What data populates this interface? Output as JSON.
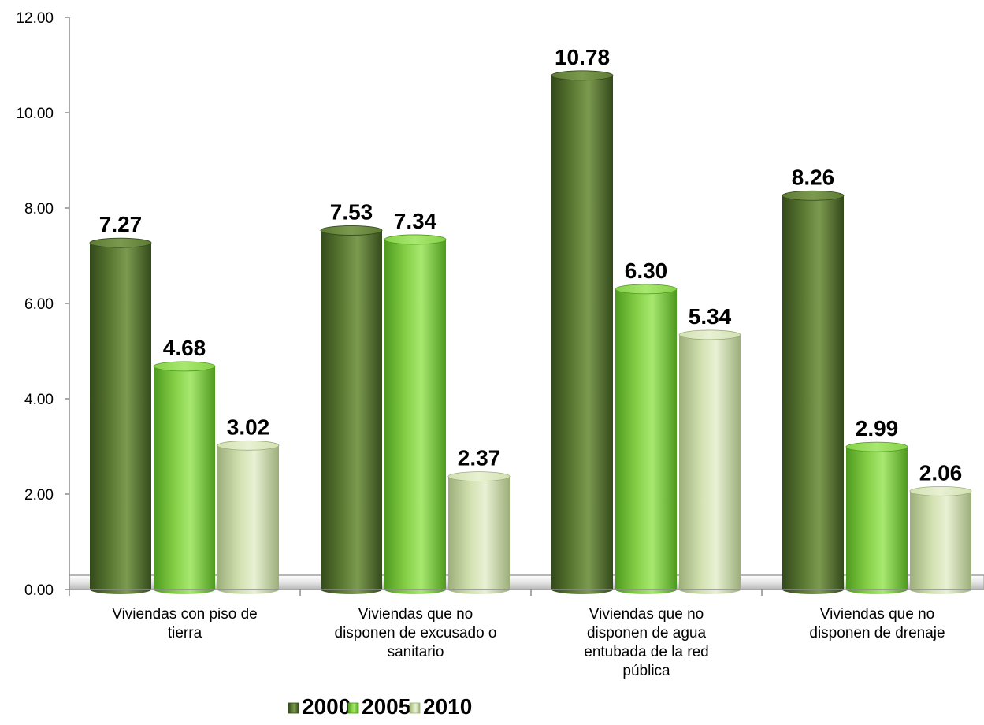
{
  "chart_data": {
    "type": "bar",
    "categories": [
      [
        "Viviendas con piso de",
        "tierra"
      ],
      [
        "Viviendas que no",
        "disponen de excusado o",
        "sanitario"
      ],
      [
        "Viviendas que no",
        "disponen de agua",
        "entubada de la red",
        "pública"
      ],
      [
        "Viviendas que no",
        "disponen de drenaje"
      ]
    ],
    "series": [
      {
        "name": "2000",
        "values": [
          7.27,
          7.53,
          10.78,
          8.26
        ]
      },
      {
        "name": "2005",
        "values": [
          4.68,
          7.34,
          6.3,
          2.99
        ]
      },
      {
        "name": "2010",
        "values": [
          3.02,
          2.37,
          5.34,
          2.06
        ]
      }
    ],
    "value_labels": [
      [
        "7.27",
        "7.53",
        "10.78",
        "8.26"
      ],
      [
        "4.68",
        "7.34",
        "6.30",
        "2.99"
      ],
      [
        "3.02",
        "2.37",
        "5.34",
        "2.06"
      ]
    ],
    "y_ticks": [
      "0.00",
      "2.00",
      "4.00",
      "6.00",
      "8.00",
      "10.00",
      "12.00"
    ],
    "ylim": [
      0,
      12
    ],
    "legend_position": "bottom",
    "colors": {
      "2000": {
        "dark": "#33491b",
        "mid": "#5c7a33",
        "light": "#7c9a4f"
      },
      "2005": {
        "dark": "#4e9a1e",
        "mid": "#86d048",
        "light": "#a8e870"
      },
      "2010": {
        "dark": "#9cae7a",
        "mid": "#d2e0b0",
        "light": "#e8f1d4"
      }
    }
  }
}
